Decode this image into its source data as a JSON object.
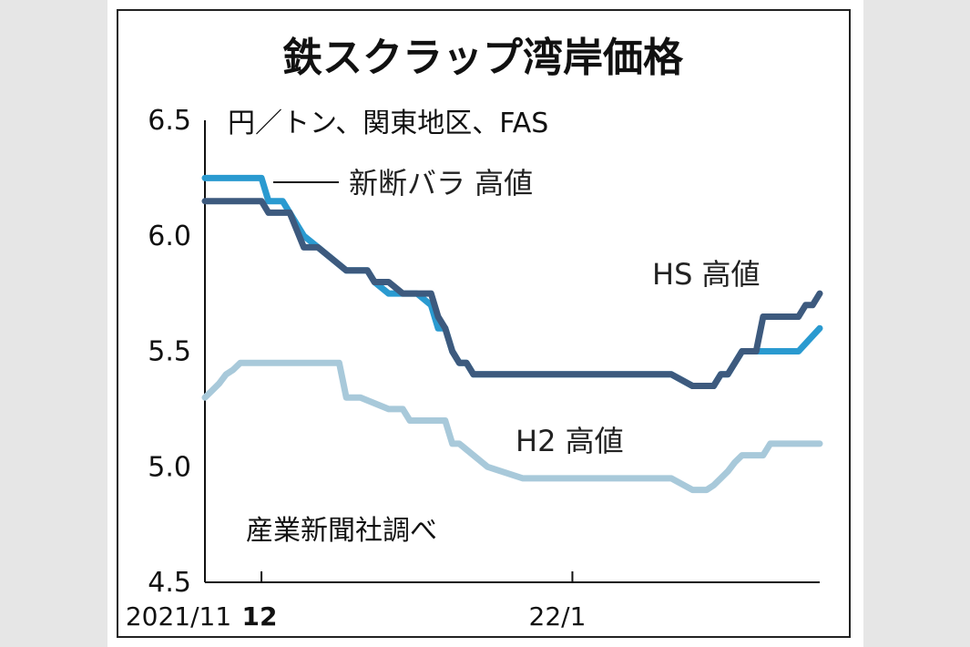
{
  "chart_data": {
    "type": "line",
    "title": "鉄スクラップ湾岸価格",
    "subtitle": "円／トン、関東地区、FAS",
    "source": "産業新聞社調べ",
    "ylim": [
      4.5,
      6.5
    ],
    "y_ticks": [
      "6.5",
      "6.0",
      "5.5",
      "5.0",
      "4.5"
    ],
    "x_tick_labels": [
      "2021/11",
      "12",
      "22/1"
    ],
    "series": [
      {
        "name": "新断バラ 高値",
        "color": "#2a9ad0",
        "x": [
          0,
          1,
          2,
          3,
          5,
          6,
          8,
          9,
          11,
          12,
          14,
          16,
          20,
          23,
          24,
          26,
          28,
          30,
          32,
          33,
          34,
          35,
          36,
          37,
          38,
          39,
          40,
          42,
          43,
          44,
          45,
          50,
          55,
          60,
          66,
          69,
          70,
          71,
          72,
          73,
          74,
          75,
          76,
          77,
          78,
          79,
          81,
          84,
          87
        ],
        "values": [
          6.25,
          6.25,
          6.25,
          6.25,
          6.25,
          6.25,
          6.25,
          6.15,
          6.15,
          6.1,
          6.0,
          5.95,
          5.85,
          5.85,
          5.8,
          5.75,
          5.75,
          5.75,
          5.7,
          5.6,
          5.6,
          5.5,
          5.45,
          5.45,
          5.4,
          5.4,
          5.4,
          5.4,
          5.4,
          5.4,
          5.4,
          5.4,
          5.4,
          5.4,
          5.4,
          5.35,
          5.35,
          5.35,
          5.35,
          5.4,
          5.4,
          5.45,
          5.5,
          5.5,
          5.5,
          5.5,
          5.5,
          5.5,
          5.6
        ]
      },
      {
        "name": "HS 高値",
        "color": "#3d5a7e",
        "x": [
          0,
          1,
          2,
          3,
          5,
          6,
          8,
          9,
          11,
          12,
          14,
          16,
          20,
          23,
          24,
          26,
          28,
          30,
          32,
          33,
          34,
          35,
          36,
          37,
          38,
          39,
          40,
          42,
          43,
          44,
          45,
          50,
          55,
          60,
          66,
          69,
          70,
          71,
          72,
          73,
          74,
          75,
          76,
          77,
          78,
          79,
          81,
          84,
          85,
          86,
          87
        ],
        "values": [
          6.15,
          6.15,
          6.15,
          6.15,
          6.15,
          6.15,
          6.15,
          6.1,
          6.1,
          6.1,
          5.95,
          5.95,
          5.85,
          5.85,
          5.8,
          5.8,
          5.75,
          5.75,
          5.75,
          5.65,
          5.6,
          5.5,
          5.45,
          5.45,
          5.4,
          5.4,
          5.4,
          5.4,
          5.4,
          5.4,
          5.4,
          5.4,
          5.4,
          5.4,
          5.4,
          5.35,
          5.35,
          5.35,
          5.35,
          5.4,
          5.4,
          5.45,
          5.5,
          5.5,
          5.5,
          5.65,
          5.65,
          5.65,
          5.7,
          5.7,
          5.75
        ]
      },
      {
        "name": "H2 高値",
        "color": "#a8c9da",
        "x": [
          0,
          1,
          2,
          3,
          4,
          5,
          6,
          8,
          10,
          12,
          14,
          16,
          19,
          20,
          22,
          26,
          28,
          29,
          34,
          35,
          36,
          40,
          45,
          50,
          55,
          60,
          64,
          66,
          69,
          70,
          71,
          72,
          73,
          74,
          75,
          76,
          77,
          78,
          79,
          80,
          81,
          82,
          84,
          87
        ],
        "values": [
          5.3,
          5.33,
          5.36,
          5.4,
          5.42,
          5.45,
          5.45,
          5.45,
          5.45,
          5.45,
          5.45,
          5.45,
          5.45,
          5.3,
          5.3,
          5.25,
          5.25,
          5.2,
          5.2,
          5.1,
          5.1,
          5.0,
          4.95,
          4.95,
          4.95,
          4.95,
          4.95,
          4.95,
          4.9,
          4.9,
          4.9,
          4.92,
          4.95,
          4.98,
          5.02,
          5.05,
          5.05,
          5.05,
          5.05,
          5.1,
          5.1,
          5.1,
          5.1,
          5.1
        ]
      }
    ],
    "series_labels": [
      "新断バラ 高値",
      "HS 高値",
      "H2 高値"
    ]
  }
}
